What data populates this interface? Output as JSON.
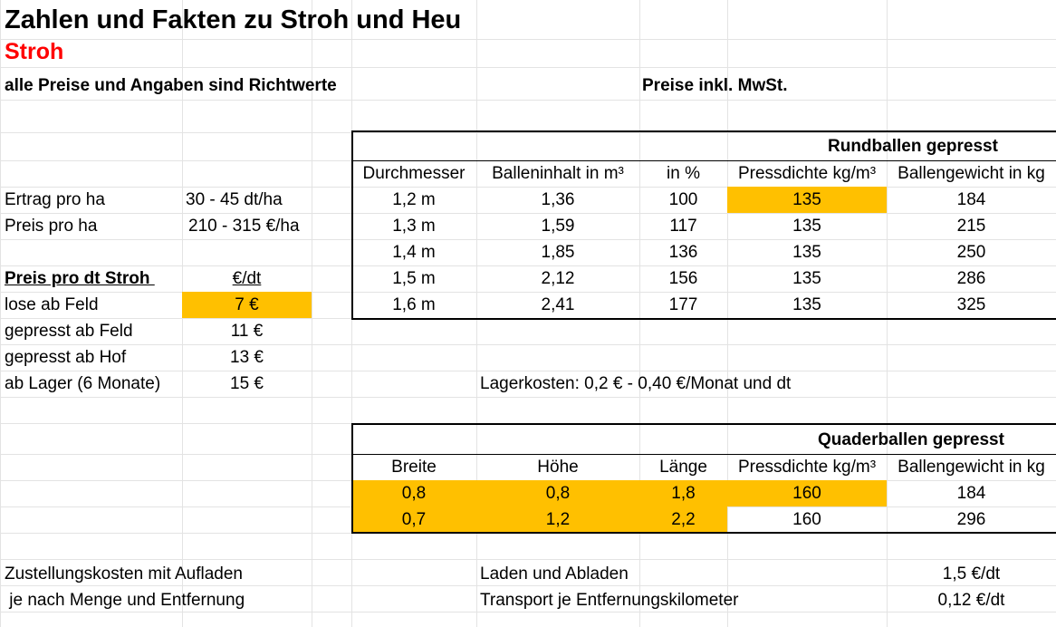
{
  "sheet": {
    "title": "Zahlen und Fakten zu Stroh und Heu",
    "section": "Stroh",
    "note_left": "alle Preise und Angaben sind Richtwerte",
    "note_right": "Preise inkl. MwSt."
  },
  "yield": {
    "rows": [
      {
        "label": "Ertrag pro ha",
        "value": "30 - 45 dt/ha"
      },
      {
        "label": "Preis pro ha",
        "value": "210 - 315 €/ha"
      }
    ]
  },
  "prices": {
    "header_label": "Preis pro dt Stroh ",
    "header_unit": "€/dt",
    "rows": [
      {
        "label": "lose ab Feld",
        "value": "7 €",
        "highlight": true
      },
      {
        "label": "gepresst ab Feld",
        "value": "11 €",
        "highlight": false
      },
      {
        "label": "gepresst ab Hof",
        "value": "13 €",
        "highlight": false
      },
      {
        "label": "ab Lager (6 Monate)",
        "value": "15 €",
        "highlight": false
      }
    ],
    "storage_cost": "Lagerkosten: 0,2 € - 0,40 €/Monat und dt"
  },
  "round_bales": {
    "title": "Rundballen gepresst",
    "headers": [
      "Durchmesser",
      "Balleninhalt in m³",
      "in %",
      "Pressdichte kg/m³",
      "Ballengewicht in kg"
    ],
    "rows": [
      [
        "1,2 m",
        "1,36",
        "100",
        "135",
        "184"
      ],
      [
        "1,3 m",
        "1,59",
        "117",
        "135",
        "215"
      ],
      [
        "1,4 m",
        "1,85",
        "136",
        "135",
        "250"
      ],
      [
        "1,5 m",
        "2,12",
        "156",
        "135",
        "286"
      ],
      [
        "1,6 m",
        "2,41",
        "177",
        "135",
        "325"
      ]
    ]
  },
  "square_bales": {
    "title": "Quaderballen gepresst",
    "headers": [
      "Breite",
      "Höhe",
      "Länge",
      "Pressdichte kg/m³",
      "Ballengewicht in kg"
    ],
    "rows": [
      [
        "0,8",
        "0,8",
        "1,8",
        "160",
        "184"
      ],
      [
        "0,7",
        "1,2",
        "2,2",
        "160",
        "296"
      ]
    ]
  },
  "delivery": {
    "left_1": "Zustellungskosten mit Aufladen",
    "left_2": " je nach Menge und Entfernung",
    "rows": [
      {
        "label": "Laden und Abladen",
        "value": "1,5 €/dt"
      },
      {
        "label": "Transport je Entfernungskilometer",
        "value": "0,12 €/dt"
      }
    ]
  },
  "colors": {
    "highlight": "#ffc000",
    "section": "#ff0000",
    "gridline": "#e3e3e3"
  }
}
